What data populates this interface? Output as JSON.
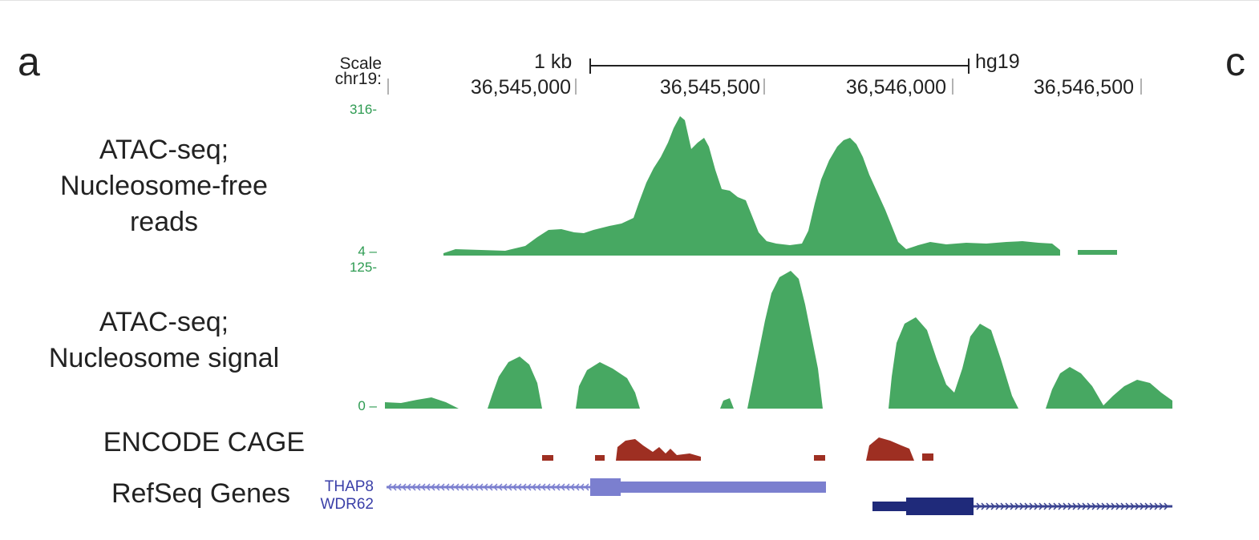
{
  "panel_labels": {
    "left": "a",
    "right": "c"
  },
  "header": {
    "scale_label": "Scale",
    "chrom_label": "chr19:",
    "scale_bar_label": "1 kb",
    "assembly": "hg19",
    "coordinates": [
      "36,545,000",
      "36,545,500",
      "36,546,000",
      "36,546,500"
    ]
  },
  "tracks": {
    "nucleosome_free": {
      "label_lines": [
        "ATAC-seq;",
        "Nucleosome-free",
        "reads"
      ],
      "axis_max": "316-",
      "axis_min": "4 –",
      "color": "#47a862"
    },
    "nucleosome_signal": {
      "label_lines": [
        "ATAC-seq;",
        "Nucleosome signal"
      ],
      "axis_max": "125-",
      "axis_min": "0 –",
      "color": "#47a862"
    },
    "cage": {
      "label": "ENCODE CAGE",
      "color": "#9e2f22"
    },
    "refseq": {
      "label": "RefSeq Genes",
      "genes": [
        {
          "name": "THAP8",
          "color": "#7b7fcf"
        },
        {
          "name": "WDR62",
          "color": "#1f2a7a"
        }
      ]
    }
  }
}
